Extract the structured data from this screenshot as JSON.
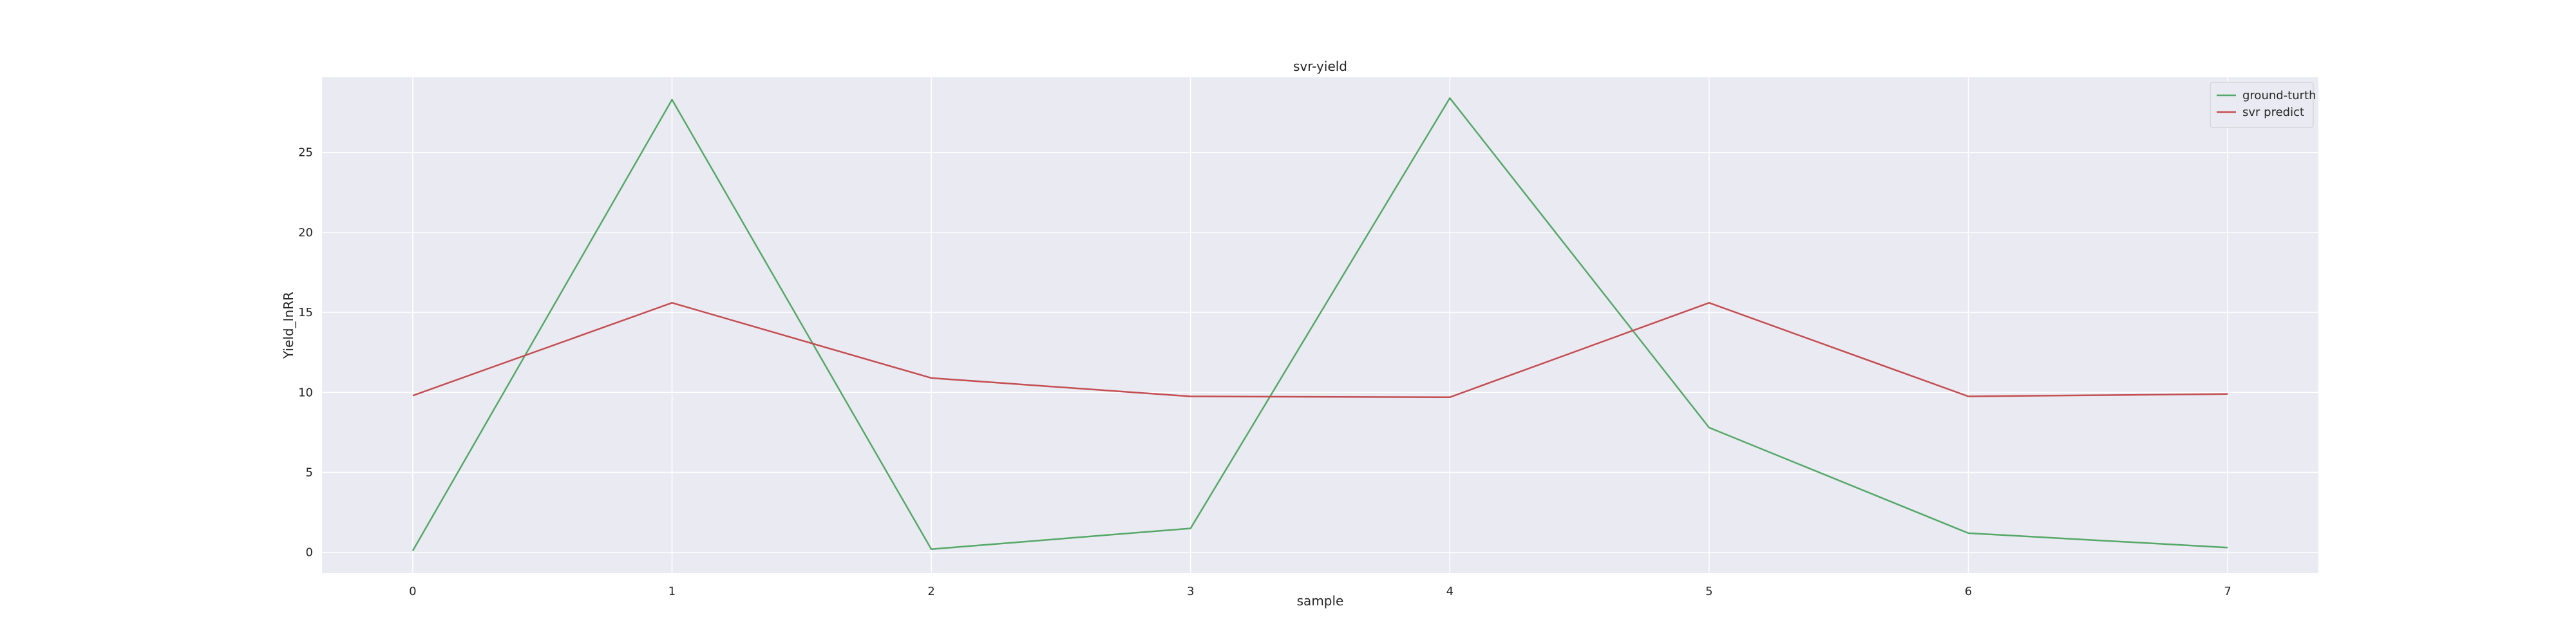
{
  "chart_data": {
    "type": "line",
    "title": "svr-yield",
    "xlabel": "sample",
    "ylabel": "Yield_InRR",
    "x": [
      0,
      1,
      2,
      3,
      4,
      5,
      6,
      7
    ],
    "xticks": [
      "0",
      "1",
      "2",
      "3",
      "4",
      "5",
      "6",
      "7"
    ],
    "yticks": [
      "0",
      "5",
      "10",
      "15",
      "20",
      "25"
    ],
    "xlim": [
      -0.35,
      7.35
    ],
    "ylim": [
      -1.3,
      29.7
    ],
    "grid": true,
    "legend_position": "top-right",
    "series": [
      {
        "name": "ground-turth",
        "color": "#55a868",
        "values": [
          0.1,
          28.3,
          0.2,
          1.5,
          28.4,
          7.8,
          1.2,
          0.3
        ]
      },
      {
        "name": "svr predict",
        "color": "#c44e52",
        "values": [
          9.8,
          15.6,
          10.9,
          9.75,
          9.7,
          15.6,
          9.75,
          9.9
        ]
      }
    ]
  }
}
